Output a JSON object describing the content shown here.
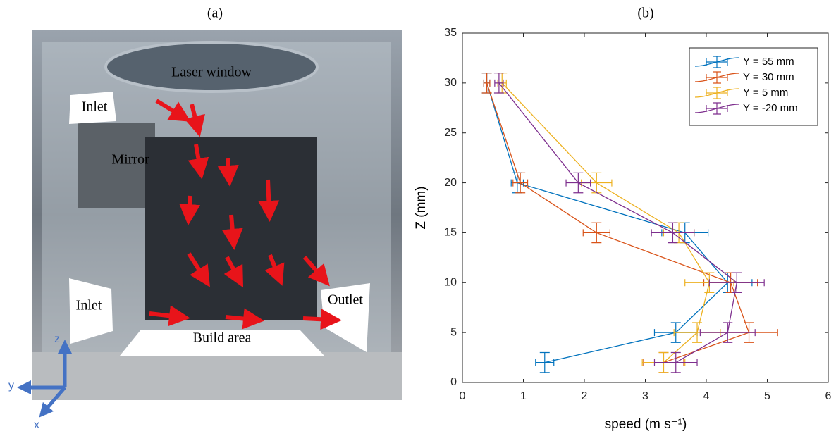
{
  "panel_a": {
    "label": "(a)",
    "laser_window": "Laser window",
    "inlet_top": "Inlet",
    "mirror": "Mirror",
    "inlet_bottom": "Inlet",
    "outlet": "Outlet",
    "build_area": "Build area",
    "axis_z": "z",
    "axis_y": "y",
    "axis_x": "x"
  },
  "chart_data": {
    "type": "line",
    "title": "(b)",
    "xlabel": "speed (m s⁻¹)",
    "ylabel": "Z (mm)",
    "y": [
      2,
      5,
      10,
      15,
      20,
      30
    ],
    "xlim": [
      0,
      6
    ],
    "xticks": [
      0,
      1,
      2,
      3,
      4,
      5,
      6
    ],
    "ylim": [
      0,
      35
    ],
    "yticks": [
      0,
      5,
      10,
      15,
      20,
      25,
      30,
      35
    ],
    "legend": "upper right",
    "series": [
      {
        "name": "Y = 55 mm",
        "color": "#0072bd",
        "values": [
          1.35,
          3.5,
          4.35,
          3.65,
          0.9,
          0.4
        ],
        "xerr": [
          0.15,
          0.35,
          0.4,
          0.38,
          0.1,
          0.05
        ],
        "yerr": [
          1,
          1,
          1,
          1,
          1,
          1
        ]
      },
      {
        "name": "Y = 30 mm",
        "color": "#d95319",
        "values": [
          3.3,
          4.7,
          4.4,
          2.2,
          0.95,
          0.4
        ],
        "xerr": [
          0.33,
          0.47,
          0.44,
          0.22,
          0.12,
          0.05
        ],
        "yerr": [
          1,
          1,
          1,
          1,
          1,
          1
        ]
      },
      {
        "name": "Y = 5 mm",
        "color": "#edb120",
        "values": [
          3.3,
          3.85,
          4.05,
          3.55,
          2.2,
          0.65
        ],
        "xerr": [
          0.35,
          0.38,
          0.4,
          0.25,
          0.25,
          0.07
        ],
        "yerr": [
          1,
          1,
          1,
          1,
          1,
          1
        ]
      },
      {
        "name": "Y = -20 mm",
        "color": "#7e2f8e",
        "values": [
          3.5,
          4.35,
          4.5,
          3.45,
          1.9,
          0.6
        ],
        "xerr": [
          0.35,
          0.45,
          0.45,
          0.35,
          0.2,
          0.07
        ],
        "yerr": [
          1,
          1,
          1,
          1,
          1,
          1
        ]
      }
    ]
  }
}
